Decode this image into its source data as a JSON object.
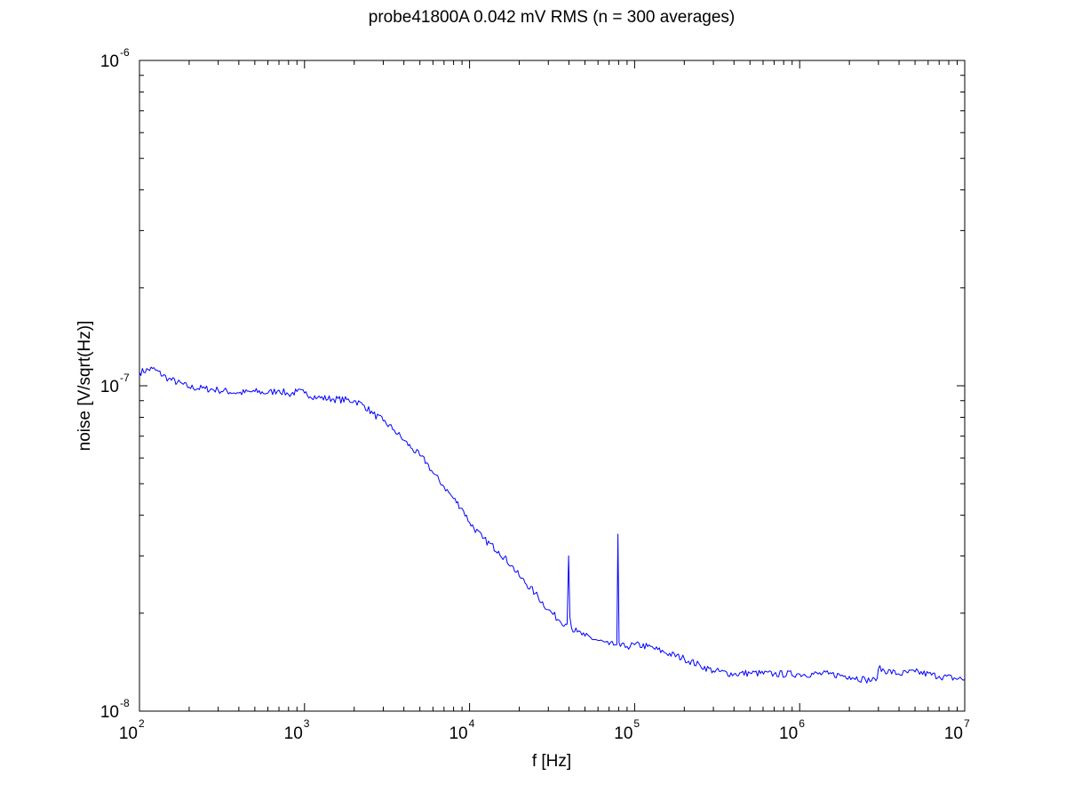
{
  "chart_data": {
    "type": "line",
    "title": "probe41800A 0.042 mV RMS (n = 300 averages)",
    "xlabel": "f [Hz]",
    "ylabel": "noise [V/sqrt(Hz)]",
    "xscale": "log",
    "yscale": "log",
    "xlim": [
      100,
      10000000
    ],
    "ylim": [
      1e-08,
      1e-06
    ],
    "grid": false,
    "x_ticks": [
      {
        "base": "10",
        "exp": "2"
      },
      {
        "base": "10",
        "exp": "3"
      },
      {
        "base": "10",
        "exp": "4"
      },
      {
        "base": "10",
        "exp": "5"
      },
      {
        "base": "10",
        "exp": "6"
      },
      {
        "base": "10",
        "exp": "7"
      }
    ],
    "y_ticks": [
      {
        "base": "10",
        "exp": "-8"
      },
      {
        "base": "10",
        "exp": "-7"
      },
      {
        "base": "10",
        "exp": "-6"
      }
    ],
    "series": [
      {
        "color": "#0000ff",
        "x": [
          100,
          120,
          150,
          200,
          250,
          300,
          400,
          500,
          600,
          700,
          800,
          900,
          1000,
          1200,
          1500,
          2000,
          2300,
          2600,
          3000,
          3500,
          4000,
          4500,
          5000,
          5500,
          6000,
          7000,
          8000,
          9000,
          10000,
          12000,
          15000,
          18000,
          20000,
          25000,
          30000,
          35000,
          39000,
          39800,
          40500,
          41500,
          45000,
          50000,
          60000,
          70000,
          78000,
          79200,
          80500,
          82000,
          90000,
          100000,
          120000,
          150000,
          200000,
          250000,
          300000,
          400000,
          500000,
          700000,
          1000000,
          1500000,
          2000000,
          2500000,
          2900000,
          3000000,
          4000000,
          5000000,
          7000000,
          10000000
        ],
        "y": [
          1.1e-07,
          1.13e-07,
          1.05e-07,
          9.9e-08,
          9.8e-08,
          9.7e-08,
          9.5e-08,
          9.6e-08,
          9.5e-08,
          9.7e-08,
          9.4e-08,
          9.6e-08,
          9.5e-08,
          9.2e-08,
          9.1e-08,
          9e-08,
          8.7e-08,
          8.2e-08,
          7.8e-08,
          7.3e-08,
          6.8e-08,
          6.4e-08,
          6.1e-08,
          5.8e-08,
          5.4e-08,
          4.9e-08,
          4.5e-08,
          4.2e-08,
          3.8e-08,
          3.4e-08,
          3.1e-08,
          2.8e-08,
          2.6e-08,
          2.3e-08,
          2.05e-08,
          1.9e-08,
          1.85e-08,
          3e-08,
          1.95e-08,
          1.8e-08,
          1.75e-08,
          1.7e-08,
          1.65e-08,
          1.6e-08,
          1.6e-08,
          3.5e-08,
          1.62e-08,
          1.58e-08,
          1.58e-08,
          1.6e-08,
          1.58e-08,
          1.52e-08,
          1.45e-08,
          1.38e-08,
          1.33e-08,
          1.3e-08,
          1.31e-08,
          1.3e-08,
          1.3e-08,
          1.3e-08,
          1.28e-08,
          1.25e-08,
          1.24e-08,
          1.35e-08,
          1.3e-08,
          1.32e-08,
          1.28e-08,
          1.25e-08
        ]
      }
    ]
  }
}
